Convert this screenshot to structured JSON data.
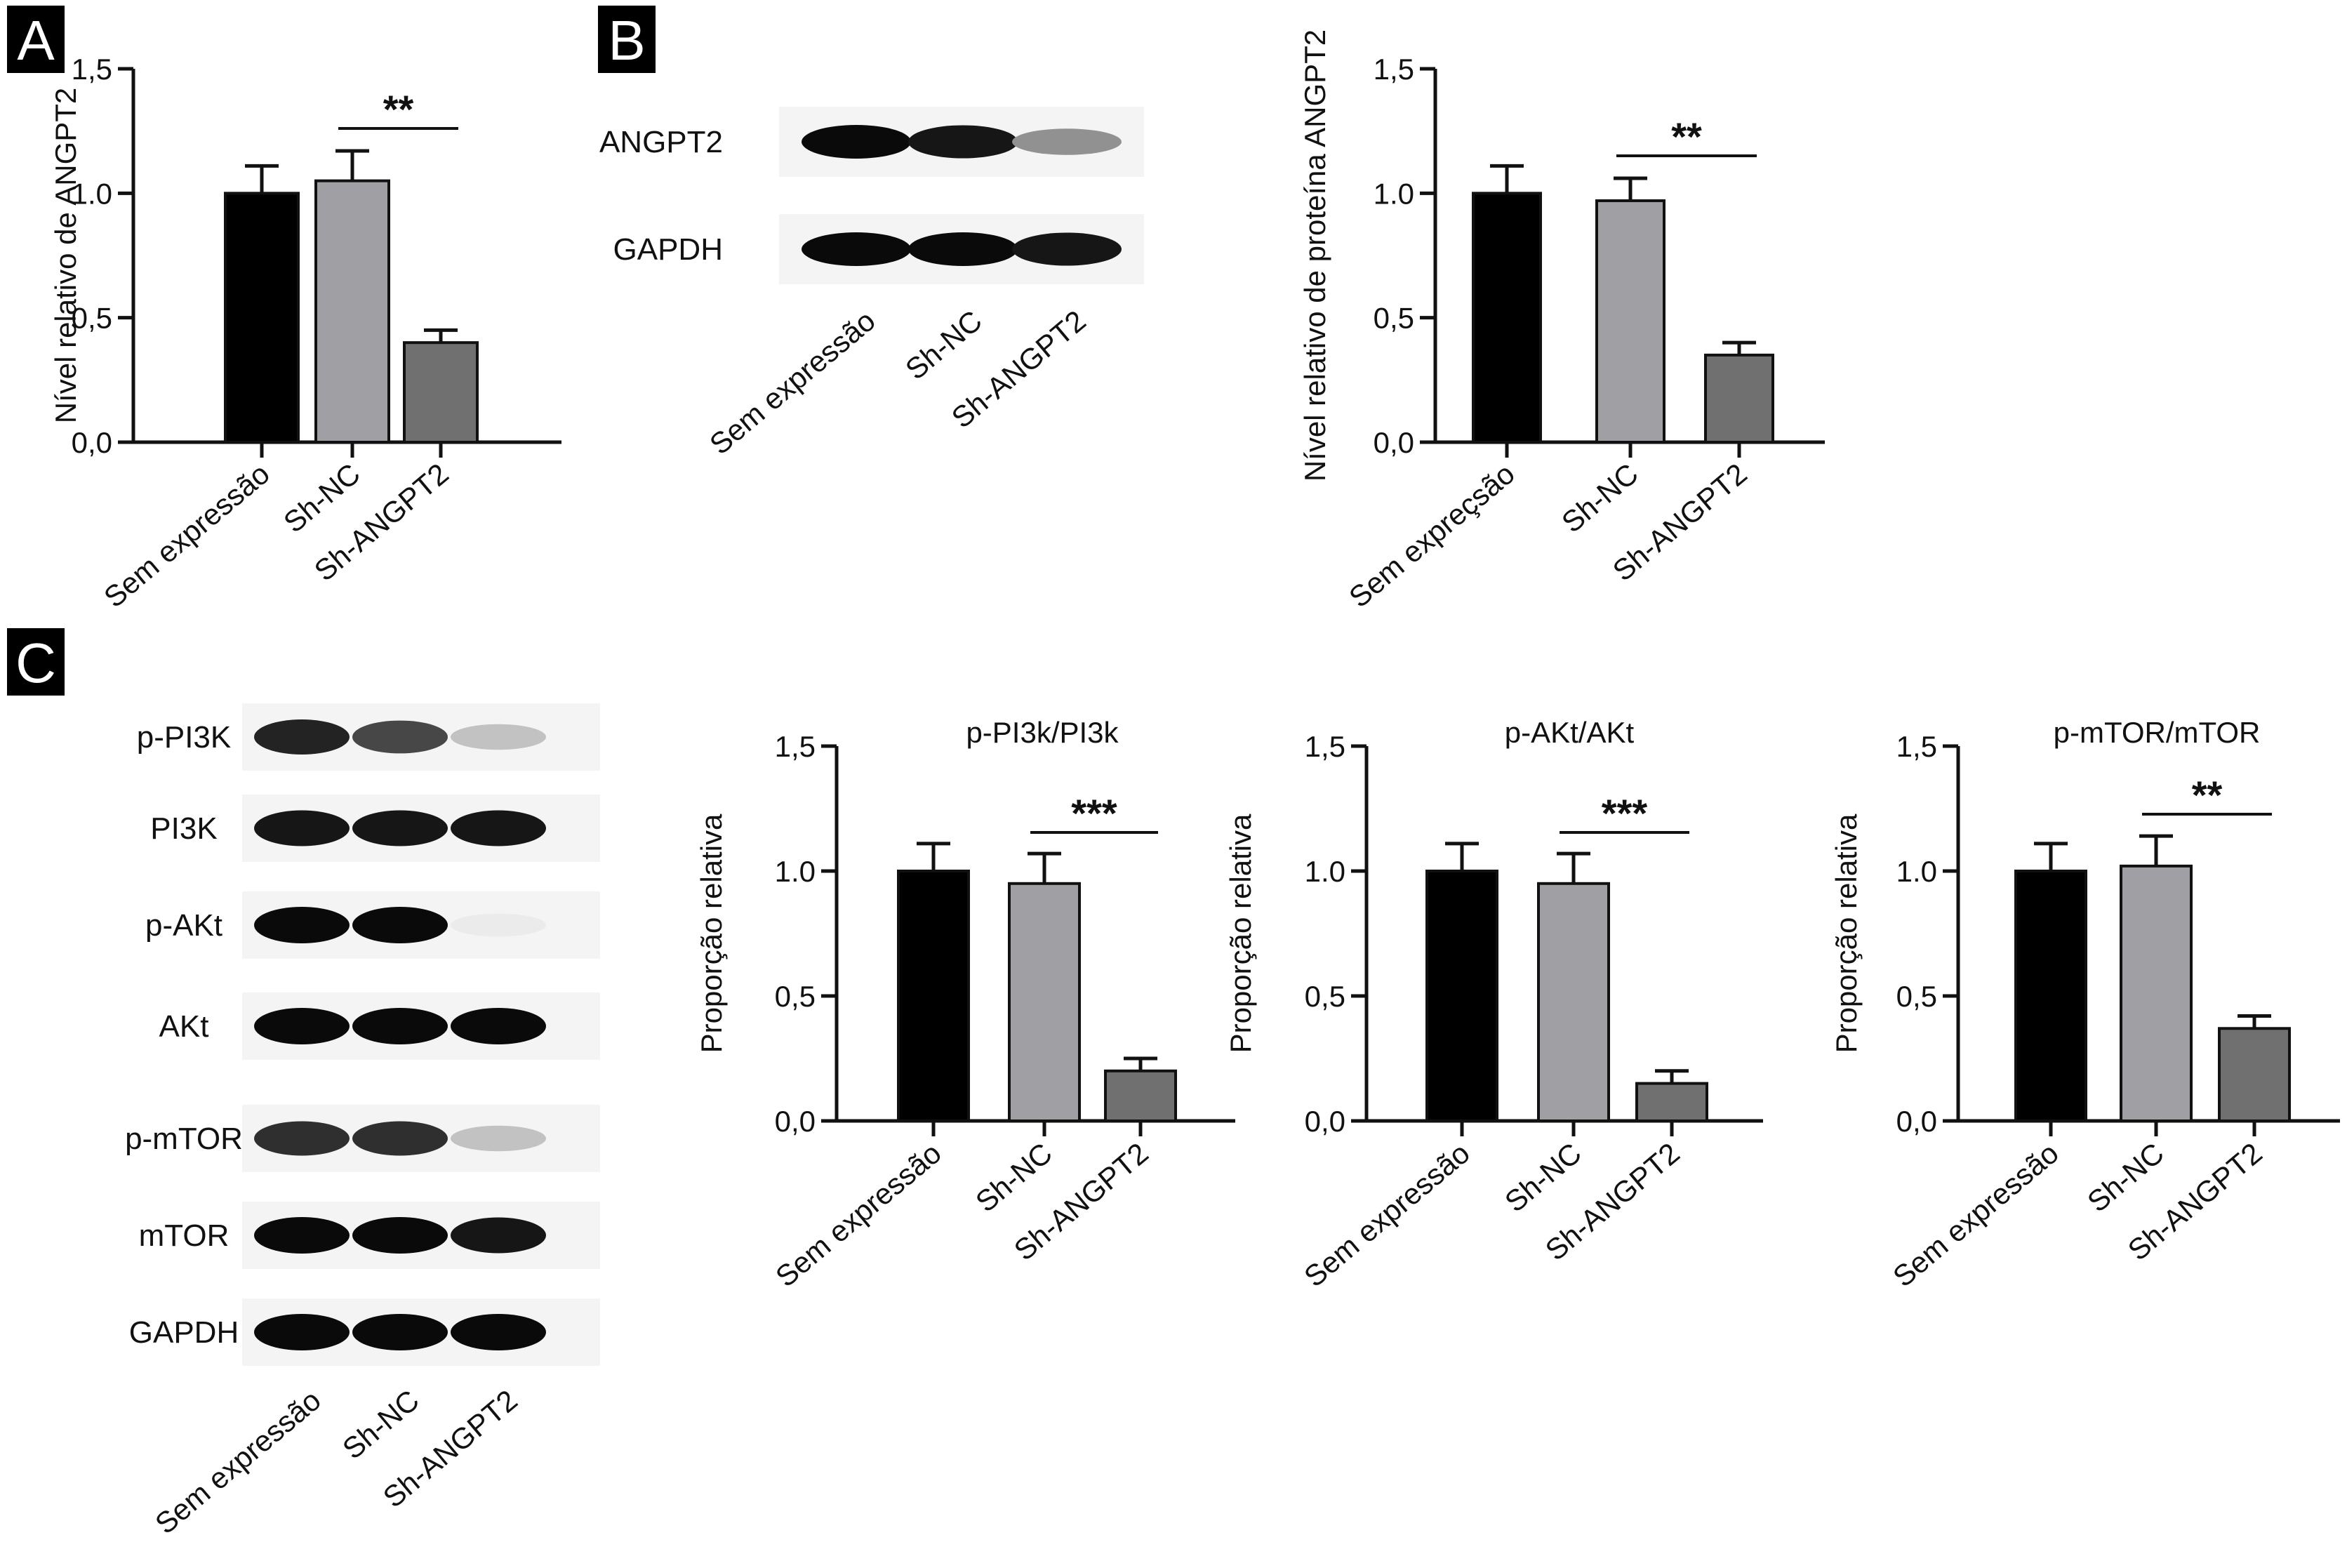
{
  "panels": {
    "A": "A",
    "B": "B",
    "C": "C"
  },
  "categories": [
    "Sem expressão",
    "Sh-NC",
    "Sh-ANGPT2"
  ],
  "colors": {
    "Sem expressão": "#000000",
    "Sh-NC": "#a0a0a4",
    "Sh-ANGPT2": "#707070"
  },
  "blots": {
    "B": {
      "bands": [
        "ANGPT2",
        "GAPDH"
      ],
      "intensity": [
        [
          1.0,
          0.95,
          0.45
        ],
        [
          1.0,
          1.0,
          0.95
        ]
      ],
      "lanes": [
        "Sem expressão",
        "Sh-NC",
        "Sh-ANGPT2"
      ]
    },
    "C": {
      "bands": [
        "p-PI3K",
        "PI3K",
        "p-AKt",
        "AKt",
        "p-mTOR",
        "mTOR",
        "GAPDH"
      ],
      "intensity": [
        [
          0.9,
          0.75,
          0.25
        ],
        [
          0.95,
          0.95,
          0.95
        ],
        [
          1.0,
          1.0,
          0.08
        ],
        [
          1.0,
          1.0,
          1.0
        ],
        [
          0.85,
          0.85,
          0.25
        ],
        [
          1.0,
          1.0,
          0.95
        ],
        [
          1.0,
          1.0,
          1.0
        ]
      ],
      "lanes": [
        "Sem expressão",
        "Sh-NC",
        "Sh-ANGPT2"
      ]
    }
  },
  "chart_data": [
    {
      "id": "A",
      "type": "bar",
      "categories": [
        "Sem expressão",
        "Sh-NC",
        "Sh-ANGPT2"
      ],
      "values": [
        1.0,
        1.05,
        0.4
      ],
      "errors": [
        0.11,
        0.12,
        0.05
      ],
      "ylim": [
        0,
        1.5
      ],
      "yticks": [
        "0,0",
        "0,5",
        "1.0",
        "1,5"
      ],
      "ylabel": "Nível relativo de ANGPT2",
      "title": "",
      "significance": {
        "between": [
          1,
          2
        ],
        "label": "**"
      }
    },
    {
      "id": "B",
      "type": "bar",
      "categories": [
        "Sem expreçsão",
        "Sh-NC",
        "Sh-ANGPT2"
      ],
      "values": [
        1.0,
        0.97,
        0.35
      ],
      "errors": [
        0.11,
        0.09,
        0.05
      ],
      "ylim": [
        0,
        1.5
      ],
      "yticks": [
        "0,0",
        "0,5",
        "1.0",
        "1,5"
      ],
      "ylabel": "Nível relativo de proteína ANGPT2",
      "title": "",
      "significance": {
        "between": [
          1,
          2
        ],
        "label": "**"
      }
    },
    {
      "id": "C1",
      "type": "bar",
      "categories": [
        "Sem expressão",
        "Sh-NC",
        "Sh-ANGPT2"
      ],
      "values": [
        1.0,
        0.95,
        0.2
      ],
      "errors": [
        0.11,
        0.12,
        0.05
      ],
      "ylim": [
        0,
        1.5
      ],
      "yticks": [
        "0,0",
        "0,5",
        "1.0",
        "1,5"
      ],
      "ylabel": "Proporção relativa",
      "title": "p-PI3k/PI3k",
      "significance": {
        "between": [
          1,
          2
        ],
        "label": "***"
      }
    },
    {
      "id": "C2",
      "type": "bar",
      "categories": [
        "Sem expressão",
        "Sh-NC",
        "Sh-ANGPT2"
      ],
      "values": [
        1.0,
        0.95,
        0.15
      ],
      "errors": [
        0.11,
        0.12,
        0.05
      ],
      "ylim": [
        0,
        1.5
      ],
      "yticks": [
        "0,0",
        "0,5",
        "1.0",
        "1,5"
      ],
      "ylabel": "Proporção relativa",
      "title": "p-AKt/AKt",
      "significance": {
        "between": [
          1,
          2
        ],
        "label": "***"
      }
    },
    {
      "id": "C3",
      "type": "bar",
      "categories": [
        "Sem expressão",
        "Sh-NC",
        "Sh-ANGPT2"
      ],
      "values": [
        1.0,
        1.02,
        0.37
      ],
      "errors": [
        0.11,
        0.12,
        0.05
      ],
      "ylim": [
        0,
        1.5
      ],
      "yticks": [
        "0,0",
        "0,5",
        "1.0",
        "1,5"
      ],
      "ylabel": "Proporção relativa",
      "title": "p-mTOR/mTOR",
      "significance": {
        "between": [
          1,
          2
        ],
        "label": "**"
      }
    }
  ]
}
